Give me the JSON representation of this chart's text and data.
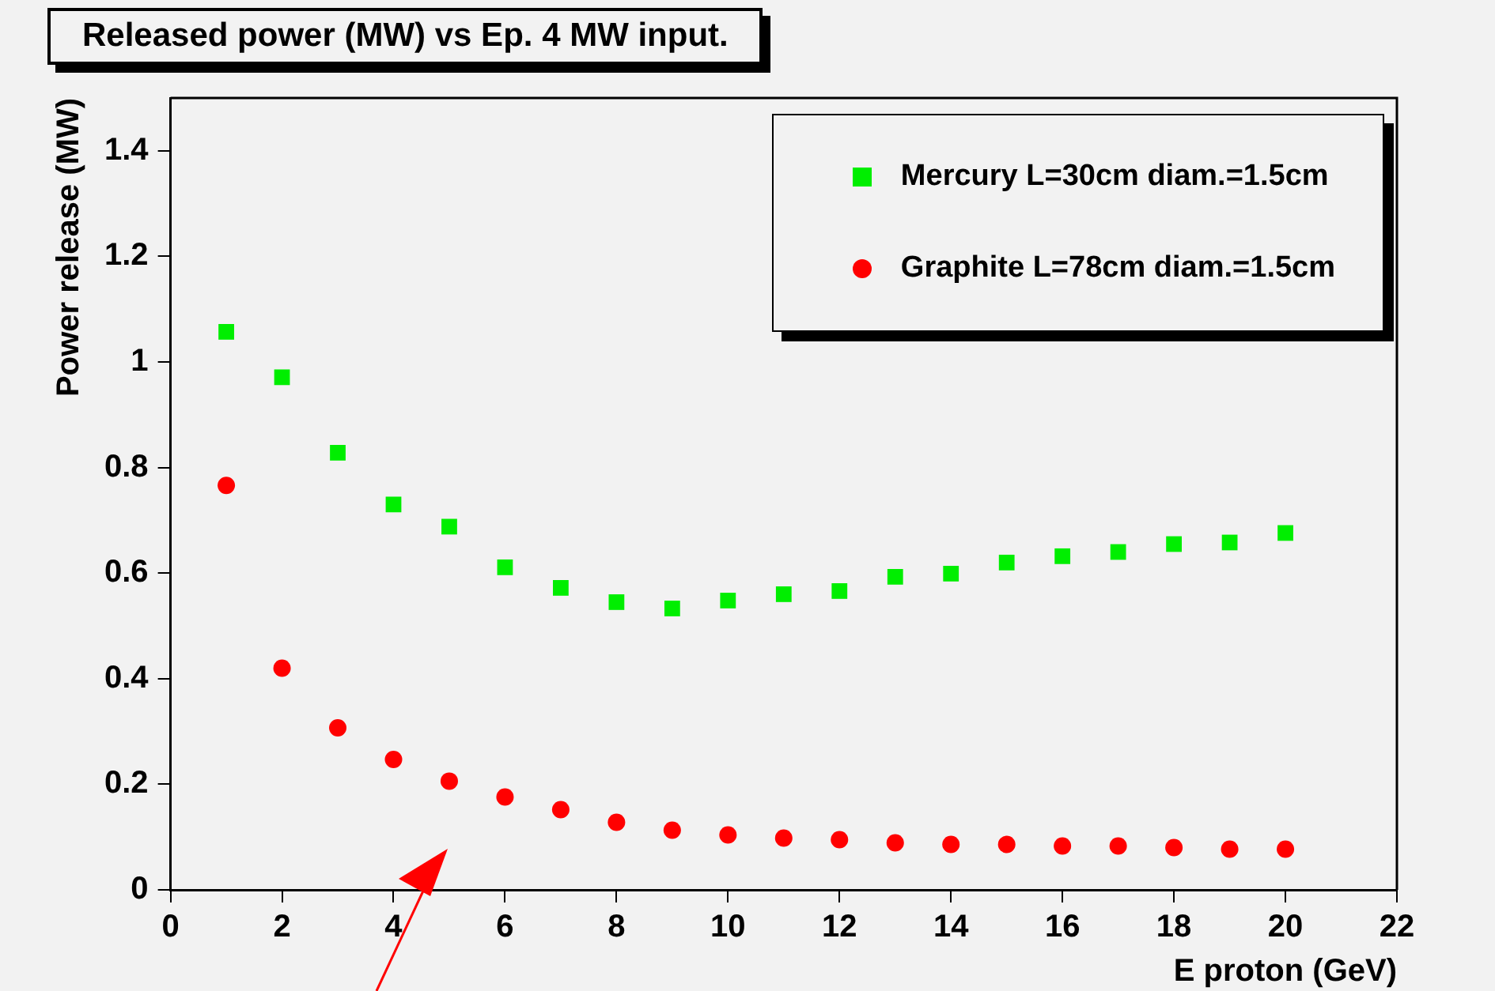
{
  "chart_data": {
    "type": "scatter",
    "title": "Released power (MW) vs Ep. 4 MW input.",
    "xlabel": "E proton (GeV)",
    "ylabel": "Power release (MW)",
    "x": [
      1,
      2,
      3,
      4,
      5,
      6,
      7,
      8,
      9,
      10,
      11,
      12,
      13,
      14,
      15,
      16,
      17,
      18,
      19,
      20
    ],
    "series": [
      {
        "name": "Mercury L=30cm diam.=1.5cm",
        "color": "#00ee00",
        "marker": "square",
        "values": [
          1.057,
          0.971,
          0.828,
          0.73,
          0.688,
          0.611,
          0.572,
          0.545,
          0.533,
          0.548,
          0.56,
          0.566,
          0.593,
          0.599,
          0.62,
          0.632,
          0.64,
          0.655,
          0.658,
          0.676
        ]
      },
      {
        "name": "Graphite L=78cm diam.=1.5cm",
        "color": "#ff0000",
        "marker": "circle",
        "values": [
          0.766,
          0.42,
          0.307,
          0.247,
          0.206,
          0.176,
          0.152,
          0.128,
          0.113,
          0.104,
          0.098,
          0.095,
          0.089,
          0.086,
          0.086,
          0.083,
          0.083,
          0.08,
          0.077,
          0.077
        ]
      }
    ],
    "xlim": [
      0,
      22
    ],
    "xticks": [
      0,
      2,
      4,
      6,
      8,
      10,
      12,
      14,
      16,
      18,
      20,
      22
    ],
    "ylim": [
      0,
      1.5
    ],
    "yticks": [
      0,
      0.2,
      0.4,
      0.6,
      0.8,
      1,
      1.2,
      1.4
    ],
    "grid": false,
    "legend": "top right"
  }
}
